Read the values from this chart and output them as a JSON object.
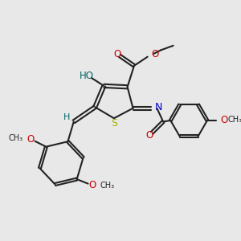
{
  "background_color": "#e8e8e8",
  "bond_color": "#222222",
  "S_color": "#aaaa00",
  "N_color": "#0000cc",
  "O_color": "#cc0000",
  "OH_color": "#006666",
  "H_color": "#006666",
  "figsize": [
    3.0,
    3.0
  ],
  "dpi": 100,
  "xlim": [
    0,
    10
  ],
  "ylim": [
    0,
    10
  ]
}
